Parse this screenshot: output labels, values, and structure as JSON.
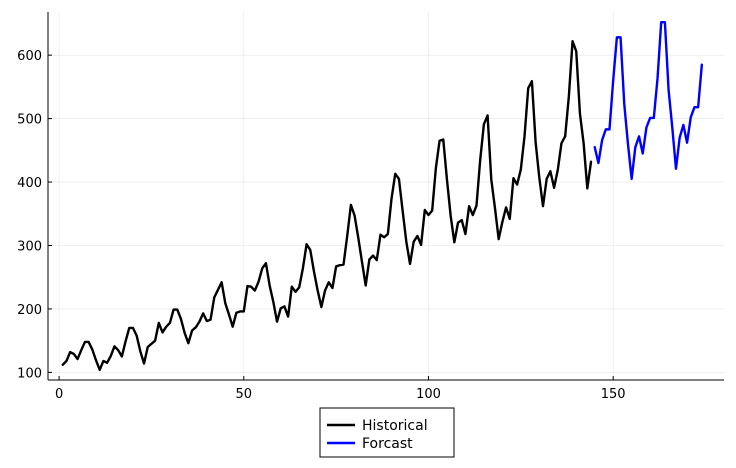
{
  "chart_data": {
    "type": "line",
    "title": "",
    "xlabel": "",
    "ylabel": "",
    "xlim": [
      -3,
      180
    ],
    "ylim": [
      88,
      668
    ],
    "xticks": [
      0,
      50,
      100,
      150
    ],
    "yticks": [
      100,
      200,
      300,
      400,
      500,
      600
    ],
    "grid": true,
    "legend": {
      "position": "bottom-center-outside"
    },
    "series": [
      {
        "name": "Historical",
        "color": "#000000",
        "x": [
          1,
          2,
          3,
          4,
          5,
          6,
          7,
          8,
          9,
          10,
          11,
          12,
          13,
          14,
          15,
          16,
          17,
          18,
          19,
          20,
          21,
          22,
          23,
          24,
          25,
          26,
          27,
          28,
          29,
          30,
          31,
          32,
          33,
          34,
          35,
          36,
          37,
          38,
          39,
          40,
          41,
          42,
          43,
          44,
          45,
          46,
          47,
          48,
          49,
          50,
          51,
          52,
          53,
          54,
          55,
          56,
          57,
          58,
          59,
          60,
          61,
          62,
          63,
          64,
          65,
          66,
          67,
          68,
          69,
          70,
          71,
          72,
          73,
          74,
          75,
          76,
          77,
          78,
          79,
          80,
          81,
          82,
          83,
          84,
          85,
          86,
          87,
          88,
          89,
          90,
          91,
          92,
          93,
          94,
          95,
          96,
          97,
          98,
          99,
          100,
          101,
          102,
          103,
          104,
          105,
          106,
          107,
          108,
          109,
          110,
          111,
          112,
          113,
          114,
          115,
          116,
          117,
          118,
          119,
          120,
          121,
          122,
          123,
          124,
          125,
          126,
          127,
          128,
          129,
          130,
          131,
          132,
          133,
          134,
          135,
          136,
          137,
          138,
          139,
          140,
          141,
          142,
          143,
          144
        ],
        "values": [
          112,
          118,
          132,
          129,
          121,
          135,
          148,
          148,
          136,
          119,
          104,
          118,
          115,
          126,
          141,
          135,
          125,
          149,
          170,
          170,
          158,
          133,
          114,
          140,
          145,
          150,
          178,
          163,
          172,
          178,
          199,
          199,
          184,
          162,
          146,
          166,
          171,
          180,
          193,
          181,
          183,
          218,
          230,
          242,
          209,
          191,
          172,
          194,
          196,
          196,
          236,
          235,
          229,
          243,
          264,
          272,
          237,
          211,
          180,
          201,
          204,
          188,
          235,
          227,
          234,
          264,
          302,
          293,
          259,
          229,
          203,
          229,
          242,
          233,
          267,
          269,
          270,
          315,
          364,
          347,
          312,
          274,
          237,
          278,
          284,
          277,
          317,
          313,
          318,
          374,
          413,
          405,
          355,
          306,
          271,
          306,
          315,
          301,
          356,
          348,
          355,
          422,
          465,
          467,
          404,
          347,
          305,
          336,
          340,
          318,
          362,
          348,
          363,
          435,
          491,
          505,
          404,
          359,
          310,
          337,
          360,
          342,
          406,
          396,
          420,
          472,
          548,
          559,
          463,
          407,
          362,
          405,
          417,
          391,
          419,
          461,
          472,
          535,
          622,
          606,
          508,
          461,
          390,
          432
        ]
      },
      {
        "name": "Forcast",
        "color": "#0000ff",
        "x": [
          145,
          146,
          147,
          148,
          149,
          150,
          151,
          152,
          153,
          154,
          155,
          156,
          157,
          158,
          159,
          160,
          161,
          162,
          163,
          164,
          165,
          166,
          167,
          168,
          169,
          170,
          171,
          172,
          173,
          174
        ],
        "values": [
          455,
          430,
          466,
          483,
          483,
          560,
          628,
          628,
          523,
          460,
          405,
          455,
          472,
          445,
          486,
          501,
          501,
          563,
          652,
          652,
          545,
          486,
          421,
          470,
          490,
          462,
          502,
          518,
          518,
          585
        ]
      }
    ]
  }
}
